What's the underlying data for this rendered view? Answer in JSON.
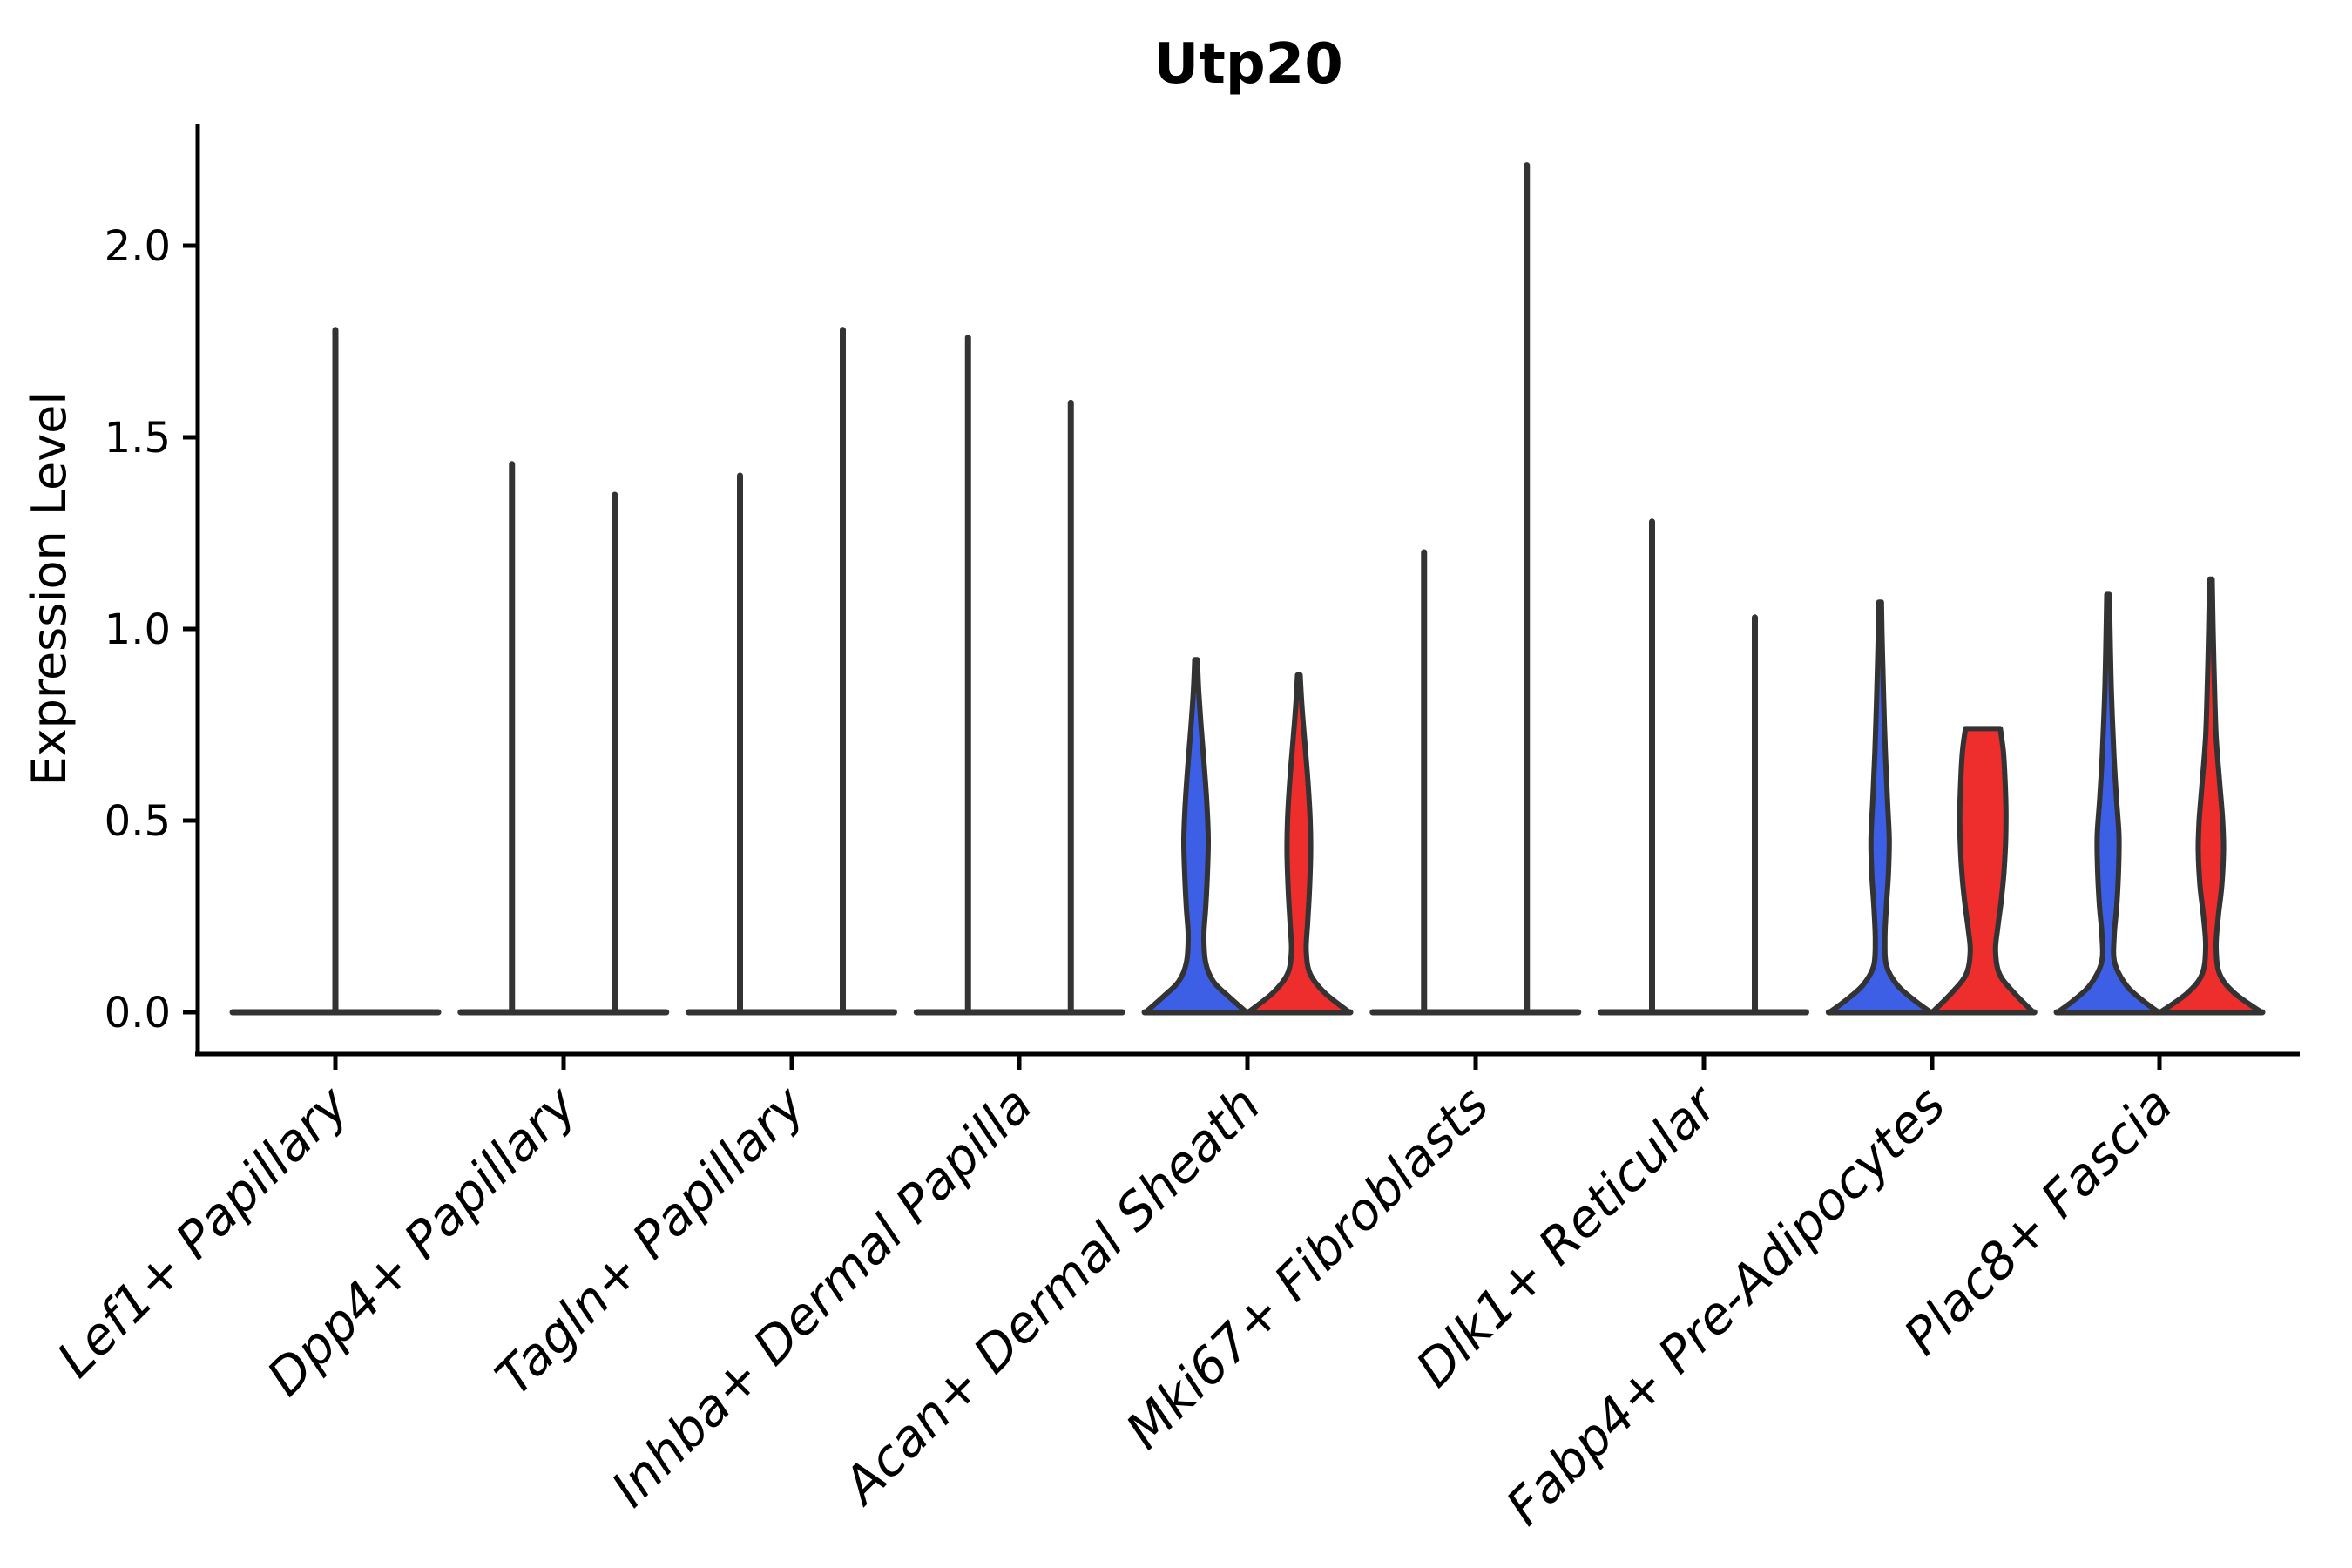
{
  "title": "Utp20",
  "axes": {
    "ylabel": "Expression Level",
    "yticks": [
      "2.0",
      "1.5",
      "1.0",
      "0.5",
      "0.0"
    ]
  },
  "colors": {
    "blue": "#3D5FE6",
    "red": "#EE2D2D",
    "outline": "#333333",
    "axis": "#000000",
    "background": "#ffffff"
  },
  "chart_data": {
    "type": "violin",
    "title": "Utp20",
    "xlabel": "",
    "ylabel": "Expression Level",
    "ylim": [
      0,
      2.32
    ],
    "yticks": [
      0.0,
      0.5,
      1.0,
      1.5,
      2.0
    ],
    "grid": false,
    "legend": "none",
    "split_groups": [
      {
        "position": "left",
        "color_key": "blue"
      },
      {
        "position": "right",
        "color_key": "red"
      }
    ],
    "categories": [
      "Lef1+ Papillary",
      "Dpp4+ Papillary",
      "Tagln+ Papillary",
      "Inhba+ Dermal Papilla",
      "Acan+ Dermal Sheath",
      "Mki67+ Fibroblasts",
      "Dlk1+ Reticular",
      "Fabp4+ Pre-Adipocytes",
      "Plac8+ Fascia"
    ],
    "violins": [
      {
        "category": "Lef1+ Papillary",
        "type": "collapsed-single",
        "max_expression": 1.78,
        "note": "single centered collapsed violin: flat at 0 with one spike to max"
      },
      {
        "category": "Dpp4+ Papillary",
        "type": "collapsed-pair",
        "max_left": 1.43,
        "max_right": 1.35
      },
      {
        "category": "Tagln+ Papillary",
        "type": "collapsed-pair",
        "max_left": 1.4,
        "max_right": 1.78
      },
      {
        "category": "Inhba+ Dermal Papilla",
        "type": "collapsed-pair",
        "max_left": 1.76,
        "max_right": 1.59
      },
      {
        "category": "Acan+ Dermal Sheath",
        "type": "filled-pair",
        "max_left": 0.92,
        "max_right": 0.88,
        "profile_left": [
          [
            0.92,
            1.5
          ],
          [
            0.84,
            3
          ],
          [
            0.74,
            6
          ],
          [
            0.64,
            9.5
          ],
          [
            0.54,
            12.5
          ],
          [
            0.45,
            14
          ],
          [
            0.36,
            13
          ],
          [
            0.27,
            11
          ],
          [
            0.2,
            9
          ],
          [
            0.13,
            11
          ],
          [
            0.08,
            20
          ],
          [
            0.04,
            38
          ],
          [
            0.0,
            58
          ]
        ],
        "profile_right": [
          [
            0.88,
            1.5
          ],
          [
            0.8,
            3.5
          ],
          [
            0.7,
            7
          ],
          [
            0.6,
            10.5
          ],
          [
            0.5,
            13
          ],
          [
            0.41,
            13.5
          ],
          [
            0.31,
            12
          ],
          [
            0.23,
            10
          ],
          [
            0.16,
            8.5
          ],
          [
            0.1,
            13
          ],
          [
            0.05,
            30
          ],
          [
            0.0,
            58
          ]
        ]
      },
      {
        "category": "Mki67+ Fibroblasts",
        "type": "collapsed-pair",
        "max_left": 1.2,
        "max_right": 2.21
      },
      {
        "category": "Dlk1+ Reticular",
        "type": "collapsed-pair",
        "max_left": 1.28,
        "max_right": 1.03
      },
      {
        "category": "Fabp4+ Pre-Adipocytes",
        "type": "filled-pair",
        "max_left": 1.07,
        "max_right": 0.74,
        "profile_left": [
          [
            1.07,
            1.5
          ],
          [
            0.95,
            2.5
          ],
          [
            0.82,
            4
          ],
          [
            0.68,
            6
          ],
          [
            0.55,
            8.5
          ],
          [
            0.45,
            10.5
          ],
          [
            0.36,
            9.5
          ],
          [
            0.27,
            7
          ],
          [
            0.19,
            5.5
          ],
          [
            0.12,
            7.5
          ],
          [
            0.07,
            20
          ],
          [
            0.03,
            40
          ],
          [
            0.0,
            58
          ]
        ],
        "profile_right": [
          [
            0.74,
            20
          ],
          [
            0.68,
            23.5
          ],
          [
            0.6,
            25.5
          ],
          [
            0.52,
            26.5
          ],
          [
            0.44,
            26
          ],
          [
            0.36,
            24
          ],
          [
            0.29,
            21
          ],
          [
            0.22,
            17
          ],
          [
            0.16,
            14.5
          ],
          [
            0.1,
            19
          ],
          [
            0.05,
            36
          ],
          [
            0.0,
            58
          ]
        ]
      },
      {
        "category": "Plac8+ Fascia",
        "type": "filled-pair",
        "max_left": 1.09,
        "max_right": 1.13,
        "profile_left": [
          [
            1.09,
            1.5
          ],
          [
            0.96,
            2.5
          ],
          [
            0.82,
            4
          ],
          [
            0.68,
            6.5
          ],
          [
            0.56,
            9.5
          ],
          [
            0.46,
            12.5
          ],
          [
            0.37,
            12
          ],
          [
            0.28,
            10
          ],
          [
            0.2,
            7
          ],
          [
            0.13,
            7.5
          ],
          [
            0.07,
            21
          ],
          [
            0.03,
            40
          ],
          [
            0.0,
            58
          ]
        ],
        "profile_right": [
          [
            1.13,
            1.5
          ],
          [
            1.0,
            2.5
          ],
          [
            0.86,
            4
          ],
          [
            0.72,
            6
          ],
          [
            0.6,
            10
          ],
          [
            0.5,
            13.5
          ],
          [
            0.42,
            14.5
          ],
          [
            0.33,
            12.5
          ],
          [
            0.25,
            8.5
          ],
          [
            0.17,
            6
          ],
          [
            0.1,
            10
          ],
          [
            0.05,
            27
          ],
          [
            0.0,
            58
          ]
        ]
      }
    ]
  }
}
